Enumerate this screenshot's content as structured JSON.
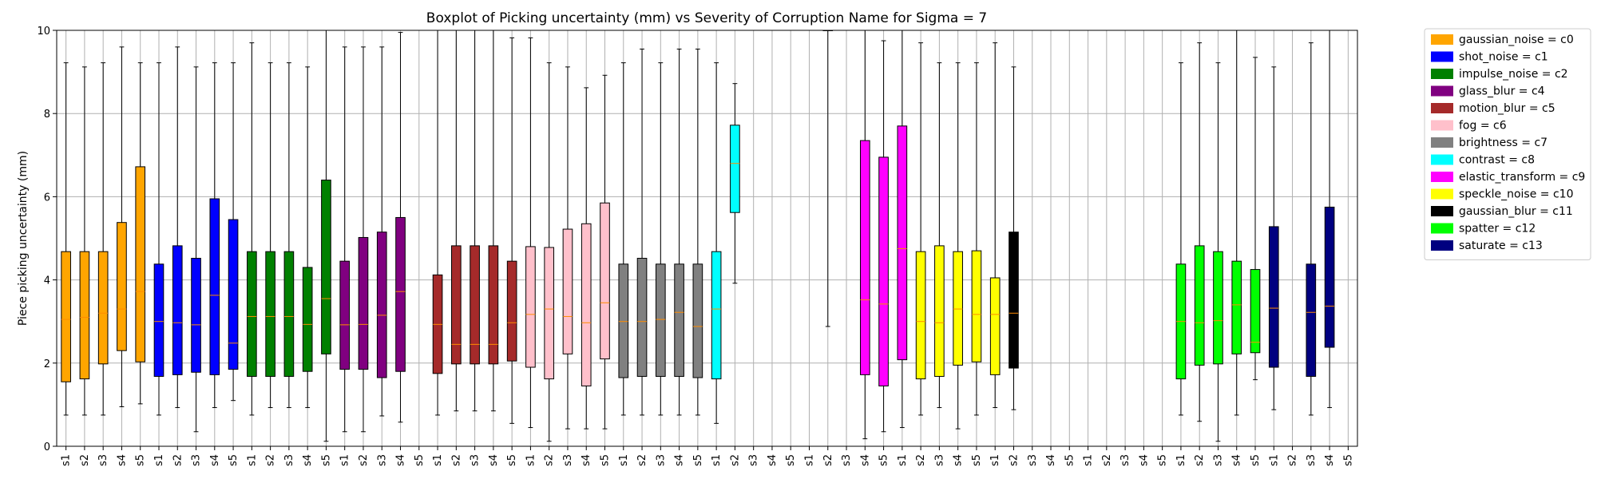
{
  "chart_data": {
    "type": "boxplot",
    "title": "Boxplot of Picking uncertainty (mm) vs Severity of Corruption Name for Sigma = 7",
    "xlabel": "",
    "ylabel": "Piece picking uncertainty (mm)",
    "ylim": [
      0,
      10
    ],
    "yticks": [
      0,
      2,
      4,
      6,
      8,
      10
    ],
    "grid": true,
    "legend_position": "outside-right",
    "legend": [
      {
        "label": "gaussian_noise = c0",
        "color": "#FFA500"
      },
      {
        "label": "shot_noise = c1",
        "color": "#0000FF"
      },
      {
        "label": "impulse_noise = c2",
        "color": "#008000"
      },
      {
        "label": "glass_blur = c4",
        "color": "#800080"
      },
      {
        "label": "motion_blur = c5",
        "color": "#A52A2A"
      },
      {
        "label": "fog = c6",
        "color": "#FFC0CB"
      },
      {
        "label": "brightness = c7",
        "color": "#808080"
      },
      {
        "label": "contrast = c8",
        "color": "#00FFFF"
      },
      {
        "label": "elastic_transform = c9",
        "color": "#FF00FF"
      },
      {
        "label": "speckle_noise = c10",
        "color": "#FFFF00"
      },
      {
        "label": "gaussian_blur = c11",
        "color": "#000000"
      },
      {
        "label": "spatter = c12",
        "color": "#00FF00"
      },
      {
        "label": "saturate = c13",
        "color": "#000080"
      }
    ],
    "categories": [
      "s1",
      "s2",
      "s3",
      "s4",
      "s5",
      "s1",
      "s2",
      "s3",
      "s4",
      "s5",
      "s1",
      "s2",
      "s3",
      "s4",
      "s5",
      "s1",
      "s2",
      "s3",
      "s4",
      "s5",
      "s1",
      "s2",
      "s3",
      "s4",
      "s5",
      "s1",
      "s2",
      "s3",
      "s4",
      "s5",
      "s1",
      "s2",
      "s3",
      "s4",
      "s5",
      "s1",
      "s2",
      "s3",
      "s4",
      "s5",
      "s1",
      "s2",
      "s3",
      "s4",
      "s5",
      "s1",
      "s2",
      "s3",
      "s4",
      "s5",
      "s1",
      "s2",
      "s3",
      "s4",
      "s5",
      "s1",
      "s2",
      "s3",
      "s4",
      "s5",
      "s1",
      "s2",
      "s3",
      "s4",
      "s5",
      "s1",
      "s2",
      "s3",
      "s4",
      "s5"
    ],
    "boxes": [
      {
        "pos": 0,
        "color": "#FFA500",
        "whislo": 0.75,
        "q1": 1.55,
        "med": 3.05,
        "q3": 4.68,
        "whishi": 9.22
      },
      {
        "pos": 1,
        "color": "#FFA500",
        "whislo": 0.75,
        "q1": 1.62,
        "med": 3.1,
        "q3": 4.68,
        "whishi": 9.12
      },
      {
        "pos": 2,
        "color": "#FFA500",
        "whislo": 0.75,
        "q1": 1.98,
        "med": 3.2,
        "q3": 4.68,
        "whishi": 9.22
      },
      {
        "pos": 3,
        "color": "#FFA500",
        "whislo": 0.95,
        "q1": 2.3,
        "med": 3.3,
        "q3": 5.38,
        "whishi": 9.6
      },
      {
        "pos": 4,
        "color": "#FFA500",
        "whislo": 1.02,
        "q1": 2.03,
        "med": 3.72,
        "q3": 6.72,
        "whishi": 9.22
      },
      {
        "pos": 5,
        "color": "#0000FF",
        "whislo": 0.75,
        "q1": 1.68,
        "med": 3.0,
        "q3": 4.38,
        "whishi": 9.22
      },
      {
        "pos": 6,
        "color": "#0000FF",
        "whislo": 0.93,
        "q1": 1.72,
        "med": 2.97,
        "q3": 4.82,
        "whishi": 9.6
      },
      {
        "pos": 7,
        "color": "#0000FF",
        "whislo": 0.35,
        "q1": 1.78,
        "med": 2.92,
        "q3": 4.52,
        "whishi": 9.12
      },
      {
        "pos": 8,
        "color": "#0000FF",
        "whislo": 0.93,
        "q1": 1.72,
        "med": 3.63,
        "q3": 5.95,
        "whishi": 9.22
      },
      {
        "pos": 9,
        "color": "#0000FF",
        "whislo": 1.1,
        "q1": 1.85,
        "med": 2.48,
        "q3": 5.45,
        "whishi": 9.22
      },
      {
        "pos": 10,
        "color": "#008000",
        "whislo": 0.75,
        "q1": 1.68,
        "med": 3.12,
        "q3": 4.68,
        "whishi": 9.7
      },
      {
        "pos": 11,
        "color": "#008000",
        "whislo": 0.93,
        "q1": 1.68,
        "med": 3.12,
        "q3": 4.68,
        "whishi": 9.22
      },
      {
        "pos": 12,
        "color": "#008000",
        "whislo": 0.93,
        "q1": 1.68,
        "med": 3.12,
        "q3": 4.68,
        "whishi": 9.22
      },
      {
        "pos": 13,
        "color": "#008000",
        "whislo": 0.93,
        "q1": 1.8,
        "med": 2.93,
        "q3": 4.3,
        "whishi": 9.12
      },
      {
        "pos": 14,
        "color": "#008000",
        "whislo": 0.12,
        "q1": 2.22,
        "med": 3.55,
        "q3": 6.4,
        "whishi": 10.0
      },
      {
        "pos": 15,
        "color": "#800080",
        "whislo": 0.35,
        "q1": 1.85,
        "med": 2.92,
        "q3": 4.45,
        "whishi": 9.6
      },
      {
        "pos": 16,
        "color": "#800080",
        "whislo": 0.35,
        "q1": 1.85,
        "med": 2.93,
        "q3": 5.02,
        "whishi": 9.6
      },
      {
        "pos": 17,
        "color": "#800080",
        "whislo": 0.73,
        "q1": 1.65,
        "med": 3.15,
        "q3": 5.15,
        "whishi": 9.6
      },
      {
        "pos": 18,
        "color": "#800080",
        "whislo": 0.58,
        "q1": 1.8,
        "med": 3.72,
        "q3": 5.5,
        "whishi": 9.95
      },
      {
        "pos": 20,
        "color": "#A52A2A",
        "whislo": 0.75,
        "q1": 1.75,
        "med": 2.93,
        "q3": 4.12,
        "whishi": 10.0
      },
      {
        "pos": 21,
        "color": "#A52A2A",
        "whislo": 0.85,
        "q1": 1.98,
        "med": 2.45,
        "q3": 4.82,
        "whishi": 10.0
      },
      {
        "pos": 22,
        "color": "#A52A2A",
        "whislo": 0.85,
        "q1": 1.98,
        "med": 2.45,
        "q3": 4.82,
        "whishi": 10.0
      },
      {
        "pos": 23,
        "color": "#A52A2A",
        "whislo": 0.85,
        "q1": 1.98,
        "med": 2.45,
        "q3": 4.82,
        "whishi": 10.0
      },
      {
        "pos": 24,
        "color": "#A52A2A",
        "whislo": 0.55,
        "q1": 2.05,
        "med": 2.97,
        "q3": 4.45,
        "whishi": 9.82
      },
      {
        "pos": 25,
        "color": "#FFC0CB",
        "whislo": 0.45,
        "q1": 1.9,
        "med": 3.17,
        "q3": 4.8,
        "whishi": 9.82
      },
      {
        "pos": 26,
        "color": "#FFC0CB",
        "whislo": 0.12,
        "q1": 1.62,
        "med": 3.3,
        "q3": 4.78,
        "whishi": 9.22
      },
      {
        "pos": 27,
        "color": "#FFC0CB",
        "whislo": 0.42,
        "q1": 2.22,
        "med": 3.12,
        "q3": 5.22,
        "whishi": 9.12
      },
      {
        "pos": 28,
        "color": "#FFC0CB",
        "whislo": 0.42,
        "q1": 1.45,
        "med": 2.97,
        "q3": 5.35,
        "whishi": 8.62
      },
      {
        "pos": 29,
        "color": "#FFC0CB",
        "whislo": 0.42,
        "q1": 2.1,
        "med": 3.45,
        "q3": 5.85,
        "whishi": 8.92
      },
      {
        "pos": 30,
        "color": "#808080",
        "whislo": 0.75,
        "q1": 1.65,
        "med": 3.0,
        "q3": 4.38,
        "whishi": 9.22
      },
      {
        "pos": 31,
        "color": "#808080",
        "whislo": 0.75,
        "q1": 1.68,
        "med": 3.0,
        "q3": 4.52,
        "whishi": 9.55
      },
      {
        "pos": 32,
        "color": "#808080",
        "whislo": 0.75,
        "q1": 1.68,
        "med": 3.05,
        "q3": 4.38,
        "whishi": 9.22
      },
      {
        "pos": 33,
        "color": "#808080",
        "whislo": 0.75,
        "q1": 1.68,
        "med": 3.22,
        "q3": 4.38,
        "whishi": 9.55
      },
      {
        "pos": 34,
        "color": "#808080",
        "whislo": 0.75,
        "q1": 1.65,
        "med": 2.88,
        "q3": 4.38,
        "whishi": 9.55
      },
      {
        "pos": 35,
        "color": "#00FFFF",
        "whislo": 0.55,
        "q1": 1.62,
        "med": 3.3,
        "q3": 4.68,
        "whishi": 9.22
      },
      {
        "pos": 36,
        "color": "#00FFFF",
        "whislo": 3.92,
        "q1": 5.62,
        "med": 6.8,
        "q3": 7.72,
        "whishi": 8.72
      },
      {
        "pos": 41,
        "color": "#FF00FF",
        "whislo": 2.88,
        "q1": 10.0,
        "med": 10.0,
        "q3": 10.0,
        "whishi": 10.0
      },
      {
        "pos": 43,
        "color": "#FF00FF",
        "whislo": 0.18,
        "q1": 1.72,
        "med": 3.52,
        "q3": 7.35,
        "whishi": 10.0
      },
      {
        "pos": 44,
        "color": "#FF00FF",
        "whislo": 0.35,
        "q1": 1.45,
        "med": 3.42,
        "q3": 6.95,
        "whishi": 9.75
      },
      {
        "pos": 45,
        "color": "#FF00FF",
        "whislo": 0.45,
        "q1": 2.08,
        "med": 4.75,
        "q3": 7.7,
        "whishi": 10.0
      },
      {
        "pos": 46,
        "color": "#FFFF00",
        "whislo": 0.75,
        "q1": 1.62,
        "med": 3.0,
        "q3": 4.68,
        "whishi": 9.7
      },
      {
        "pos": 47,
        "color": "#FFFF00",
        "whislo": 0.93,
        "q1": 1.68,
        "med": 2.97,
        "q3": 4.82,
        "whishi": 9.22
      },
      {
        "pos": 48,
        "color": "#FFFF00",
        "whislo": 0.42,
        "q1": 1.95,
        "med": 3.3,
        "q3": 4.68,
        "whishi": 9.22
      },
      {
        "pos": 49,
        "color": "#FFFF00",
        "whislo": 0.75,
        "q1": 2.03,
        "med": 3.17,
        "q3": 4.7,
        "whishi": 9.22
      },
      {
        "pos": 50,
        "color": "#FFFF00",
        "whislo": 0.93,
        "q1": 1.72,
        "med": 3.17,
        "q3": 4.05,
        "whishi": 9.7
      },
      {
        "pos": 51,
        "color": "#000000",
        "whislo": 0.88,
        "q1": 1.88,
        "med": 3.2,
        "q3": 5.15,
        "whishi": 9.12
      },
      {
        "pos": 60,
        "color": "#00FF00",
        "whislo": 0.75,
        "q1": 1.62,
        "med": 3.0,
        "q3": 4.38,
        "whishi": 9.22
      },
      {
        "pos": 61,
        "color": "#00FF00",
        "whislo": 0.6,
        "q1": 1.95,
        "med": 2.97,
        "q3": 4.82,
        "whishi": 9.7
      },
      {
        "pos": 62,
        "color": "#00FF00",
        "whislo": 0.12,
        "q1": 1.98,
        "med": 3.02,
        "q3": 4.68,
        "whishi": 9.22
      },
      {
        "pos": 63,
        "color": "#00FF00",
        "whislo": 0.75,
        "q1": 2.22,
        "med": 3.4,
        "q3": 4.45,
        "whishi": 10.0
      },
      {
        "pos": 64,
        "color": "#00FF00",
        "whislo": 1.6,
        "q1": 2.25,
        "med": 2.5,
        "q3": 4.25,
        "whishi": 9.35
      },
      {
        "pos": 65,
        "color": "#000080",
        "whislo": 0.88,
        "q1": 1.9,
        "med": 3.32,
        "q3": 5.28,
        "whishi": 9.12
      },
      {
        "pos": 67,
        "color": "#000080",
        "whislo": 0.75,
        "q1": 1.68,
        "med": 3.22,
        "q3": 4.38,
        "whishi": 9.7
      },
      {
        "pos": 68,
        "color": "#000080",
        "whislo": 0.93,
        "q1": 2.38,
        "med": 3.37,
        "q3": 5.75,
        "whishi": 10.0
      }
    ],
    "median_color": "#FF8C00"
  }
}
